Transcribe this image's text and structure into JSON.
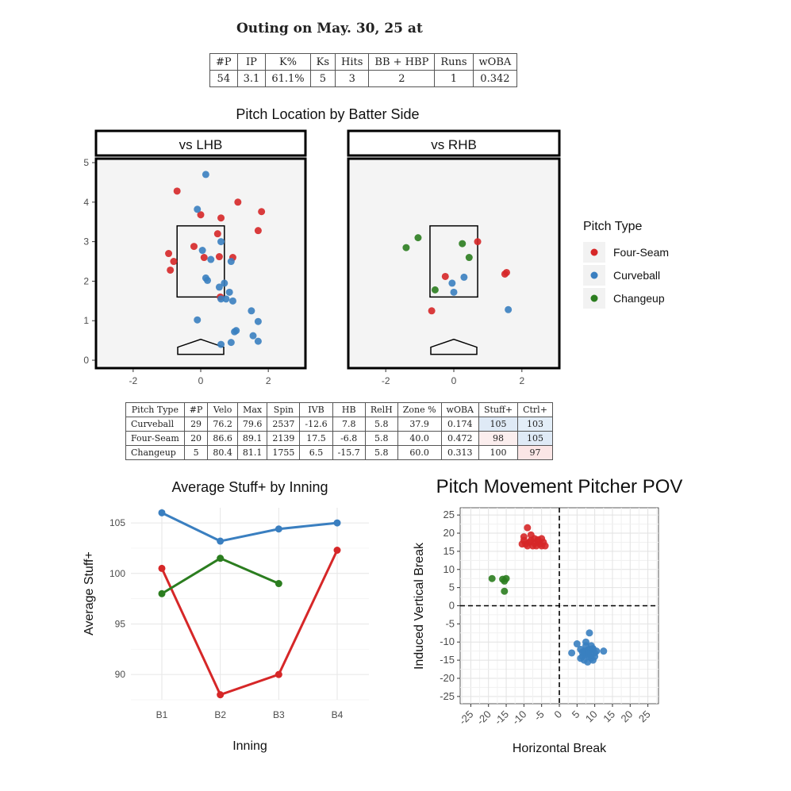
{
  "title": "Outing on May. 30, 25 at",
  "summary": {
    "headers": [
      "#P",
      "IP",
      "K%",
      "Ks",
      "Hits",
      "BB + HBP",
      "Runs",
      "wOBA"
    ],
    "values": [
      "54",
      "3.1",
      "61.1%",
      "5",
      "3",
      "2",
      "1",
      "0.342"
    ]
  },
  "colors": {
    "Four-Seam": "#d62728",
    "Curveball": "#3a7fc0",
    "Changeup": "#2b7d1f"
  },
  "arsenal": {
    "headers": [
      "Pitch Type",
      "#P",
      "Velo",
      "Max",
      "Spin",
      "IVB",
      "HB",
      "RelH",
      "Zone %",
      "wOBA",
      "Stuff+",
      "Ctrl+"
    ],
    "rows": [
      {
        "cells": [
          "Curveball",
          "29",
          "76.2",
          "79.6",
          "2537",
          "-12.6",
          "7.8",
          "5.8",
          "37.9",
          "0.174",
          "105",
          "103"
        ],
        "shade": [
          "",
          "",
          "",
          "",
          "",
          "",
          "",
          "",
          "",
          "",
          "#dfeaf6",
          "#e3eef8"
        ]
      },
      {
        "cells": [
          "Four-Seam",
          "20",
          "86.6",
          "89.1",
          "2139",
          "17.5",
          "-6.8",
          "5.8",
          "40.0",
          "0.472",
          "98",
          "105"
        ],
        "shade": [
          "",
          "",
          "",
          "",
          "",
          "",
          "",
          "",
          "",
          "",
          "#fbeeee",
          "#dfeaf6"
        ]
      },
      {
        "cells": [
          "Changeup",
          "5",
          "80.4",
          "81.1",
          "1755",
          "6.5",
          "-15.7",
          "5.8",
          "60.0",
          "0.313",
          "100",
          "97"
        ],
        "shade": [
          "",
          "",
          "",
          "",
          "",
          "",
          "",
          "",
          "",
          "",
          "",
          "#fbe6e6"
        ]
      }
    ]
  },
  "chart_data": [
    {
      "type": "scatter",
      "title": "Pitch Location by Batter Side",
      "facets": [
        "vs LHB",
        "vs RHB"
      ],
      "xlim": [
        -3.1,
        3.1
      ],
      "ylim": [
        -0.2,
        5.1
      ],
      "xticks": [
        -2,
        0,
        2
      ],
      "yticks": [
        0,
        1,
        2,
        3,
        4,
        5
      ],
      "strike_zone": {
        "x": [
          -0.7,
          0.7
        ],
        "y": [
          1.6,
          3.4
        ]
      },
      "legend": {
        "title": "Pitch Type",
        "entries": [
          "Four-Seam",
          "Curveball",
          "Changeup"
        ],
        "position": "right"
      },
      "series": [
        {
          "facet": "vs LHB",
          "name": "Four-Seam",
          "points": [
            [
              -0.7,
              4.28
            ],
            [
              0,
              3.68
            ],
            [
              0.6,
              3.6
            ],
            [
              1.1,
              4.0
            ],
            [
              1.8,
              3.76
            ],
            [
              1.7,
              3.28
            ],
            [
              -0.95,
              2.7
            ],
            [
              -0.8,
              2.5
            ],
            [
              -0.9,
              2.28
            ],
            [
              -0.2,
              2.88
            ],
            [
              0.1,
              2.6
            ],
            [
              0.55,
              2.62
            ],
            [
              0.95,
              2.6
            ],
            [
              0.5,
              3.2
            ],
            [
              0.58,
              1.6
            ]
          ]
        },
        {
          "facet": "vs LHB",
          "name": "Curveball",
          "points": [
            [
              0.15,
              4.7
            ],
            [
              -0.1,
              3.82
            ],
            [
              0.6,
              3.0
            ],
            [
              0.05,
              2.78
            ],
            [
              0.3,
              2.55
            ],
            [
              0.9,
              2.5
            ],
            [
              0.15,
              2.08
            ],
            [
              0.2,
              2.02
            ],
            [
              0.7,
              1.95
            ],
            [
              0.55,
              1.85
            ],
            [
              0.85,
              1.72
            ],
            [
              0.6,
              1.55
            ],
            [
              0.75,
              1.55
            ],
            [
              0.95,
              1.5
            ],
            [
              -0.1,
              1.02
            ],
            [
              1.5,
              1.25
            ],
            [
              1.7,
              0.98
            ],
            [
              1.05,
              0.75
            ],
            [
              1.0,
              0.72
            ],
            [
              1.55,
              0.62
            ],
            [
              1.7,
              0.48
            ],
            [
              0.9,
              0.45
            ],
            [
              0.6,
              0.4
            ]
          ]
        },
        {
          "facet": "vs RHB",
          "name": "Four-Seam",
          "points": [
            [
              0.7,
              3.0
            ],
            [
              -0.25,
              2.12
            ],
            [
              1.5,
              2.18
            ],
            [
              1.55,
              2.22
            ],
            [
              -0.65,
              1.25
            ]
          ]
        },
        {
          "facet": "vs RHB",
          "name": "Curveball",
          "points": [
            [
              -0.05,
              1.95
            ],
            [
              0.3,
              2.1
            ],
            [
              0.0,
              1.72
            ],
            [
              1.6,
              1.28
            ]
          ]
        },
        {
          "facet": "vs RHB",
          "name": "Changeup",
          "points": [
            [
              -1.4,
              2.85
            ],
            [
              -1.05,
              3.1
            ],
            [
              0.25,
              2.95
            ],
            [
              0.45,
              2.6
            ],
            [
              -0.55,
              1.78
            ]
          ]
        }
      ]
    },
    {
      "type": "line",
      "title": "Average Stuff+ by Inning",
      "xlabel": "Inning",
      "ylabel": "Average Stuff+",
      "categories": [
        "B1",
        "B2",
        "B3",
        "B4"
      ],
      "ylim": [
        87.5,
        106.5
      ],
      "yticks": [
        90,
        95,
        100,
        105
      ],
      "series": [
        {
          "name": "Curveball",
          "values": [
            106,
            103.2,
            104.4,
            105
          ]
        },
        {
          "name": "Four-Seam",
          "values": [
            100.5,
            88,
            90,
            102.3
          ]
        },
        {
          "name": "Changeup",
          "values": [
            98,
            101.5,
            99,
            null
          ]
        }
      ]
    },
    {
      "type": "scatter",
      "title": "Pitch Movement Pitcher POV",
      "xlabel": "Horizontal Break",
      "ylabel": "Induced Vertical Break",
      "xlim": [
        -28,
        28
      ],
      "ylim": [
        -27,
        27
      ],
      "ticks": [
        -25,
        -20,
        -15,
        -10,
        -5,
        0,
        5,
        10,
        15,
        20,
        25
      ],
      "series": [
        {
          "name": "Four-Seam",
          "points": [
            [
              -9,
              21.5
            ],
            [
              -10,
              19
            ],
            [
              -8,
              19.5
            ],
            [
              -7,
              18.5
            ],
            [
              -6,
              18.2
            ],
            [
              -5,
              18.5
            ],
            [
              -4.5,
              17.5
            ],
            [
              -5.5,
              17
            ],
            [
              -4,
              16.5
            ],
            [
              -6.5,
              16.5
            ],
            [
              -7.5,
              16.5
            ],
            [
              -8.5,
              17.5
            ],
            [
              -9.5,
              17
            ],
            [
              -10.5,
              17
            ],
            [
              -10,
              18
            ],
            [
              -9,
              16.5
            ],
            [
              -6,
              17.8
            ],
            [
              -7,
              17.2
            ],
            [
              -8,
              18
            ],
            [
              -5,
              16.5
            ]
          ]
        },
        {
          "name": "Curveball",
          "points": [
            [
              8.5,
              -7.5
            ],
            [
              5,
              -10.5
            ],
            [
              7.5,
              -10
            ],
            [
              9,
              -11
            ],
            [
              6,
              -12
            ],
            [
              7,
              -12.5
            ],
            [
              8,
              -13
            ],
            [
              9.5,
              -12
            ],
            [
              10,
              -13
            ],
            [
              10.5,
              -12.5
            ],
            [
              12.5,
              -12.5
            ],
            [
              3.5,
              -13
            ],
            [
              7.5,
              -13.5
            ],
            [
              6.5,
              -14
            ],
            [
              8.5,
              -14
            ],
            [
              9,
              -14.5
            ],
            [
              7,
              -15
            ],
            [
              8,
              -15.5
            ],
            [
              9.5,
              -15
            ],
            [
              6,
              -14.5
            ],
            [
              8.5,
              -12
            ],
            [
              7.5,
              -11
            ],
            [
              9,
              -13.5
            ],
            [
              7,
              -13
            ],
            [
              8,
              -12.2
            ],
            [
              10,
              -14
            ],
            [
              6.5,
              -12.8
            ],
            [
              9.5,
              -11.8
            ],
            [
              8.2,
              -13.2
            ]
          ]
        },
        {
          "name": "Changeup",
          "points": [
            [
              -19,
              7.5
            ],
            [
              -16,
              7.3
            ],
            [
              -15,
              7.5
            ],
            [
              -15.5,
              6.8
            ],
            [
              -15.5,
              4
            ]
          ]
        }
      ]
    }
  ]
}
